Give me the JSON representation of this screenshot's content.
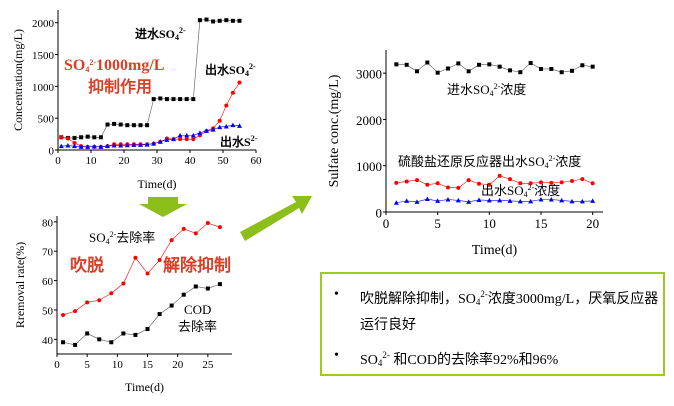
{
  "colors": {
    "arrow": "#8dbf1a",
    "box_border": "#9ccc1c",
    "annotation": "#d9402a",
    "series_black": "#000000",
    "series_red": "#ff0000",
    "series_blue": "#0000ff"
  },
  "chart_data": [
    {
      "type": "line",
      "xlabel": "Time(d)",
      "ylabel": "Concentration(mg/L)",
      "xlim": [
        0,
        60
      ],
      "ylim": [
        0,
        2200
      ],
      "xticks": [
        0,
        10,
        20,
        30,
        40,
        50,
        60
      ],
      "yticks": [
        0,
        500,
        1000,
        1500,
        2000
      ],
      "x": [
        1,
        3,
        5,
        7,
        9,
        11,
        13,
        15,
        17,
        19,
        21,
        23,
        25,
        27,
        29,
        31,
        33,
        35,
        37,
        39,
        41,
        43,
        45,
        47,
        49,
        51,
        53,
        55
      ],
      "series": [
        {
          "name": "进水SO4 2-",
          "color": "#000000",
          "marker": "square",
          "values": [
            200,
            190,
            190,
            200,
            210,
            200,
            200,
            400,
            410,
            400,
            390,
            390,
            390,
            390,
            800,
            810,
            800,
            800,
            800,
            800,
            800,
            2040,
            2050,
            2020,
            2030,
            2040,
            2030,
            2030
          ]
        },
        {
          "name": "出水SO4 2-",
          "color": "#ff0000",
          "marker": "circle",
          "values": [
            200,
            180,
            110,
            60,
            50,
            50,
            50,
            60,
            90,
            90,
            90,
            90,
            90,
            90,
            100,
            130,
            180,
            170,
            170,
            170,
            170,
            230,
            300,
            340,
            460,
            700,
            900,
            1060
          ]
        },
        {
          "name": "出水S2-",
          "color": "#0000ff",
          "marker": "triangle",
          "values": [
            60,
            70,
            60,
            50,
            50,
            55,
            50,
            60,
            70,
            70,
            75,
            80,
            80,
            85,
            100,
            130,
            160,
            170,
            230,
            230,
            230,
            270,
            300,
            320,
            360,
            370,
            390,
            380
          ]
        }
      ]
    },
    {
      "type": "line",
      "xlabel": "Time(d)",
      "ylabel": "Rremoval rate(%)",
      "xlim": [
        0,
        29
      ],
      "ylim": [
        35,
        82
      ],
      "xticks": [
        0,
        5,
        10,
        15,
        20,
        25
      ],
      "yticks": [
        40,
        50,
        60,
        70,
        80
      ],
      "x": [
        1,
        3,
        5,
        7,
        9,
        11,
        13,
        15,
        17,
        19,
        21,
        23,
        25,
        27
      ],
      "series": [
        {
          "name": "SO4 2-去除率",
          "color": "#ff0000",
          "marker": "circle",
          "values": [
            48.3,
            49.6,
            52.6,
            53.3,
            55.7,
            59,
            67.8,
            62.4,
            67,
            73.8,
            77.6,
            76.1,
            79.6,
            78.2
          ]
        },
        {
          "name": "COD去除率",
          "color": "#000000",
          "marker": "square",
          "values": [
            39,
            38.1,
            42,
            40,
            39,
            42,
            41.5,
            43.5,
            48.6,
            51.5,
            55.2,
            58,
            57.3,
            58.8
          ]
        }
      ]
    },
    {
      "type": "line",
      "xlabel": "Time(d)",
      "ylabel": "Sulfate conc.(mg/L)",
      "xlim": [
        0,
        21
      ],
      "ylim": [
        0,
        3500
      ],
      "xticks": [
        0,
        5,
        10,
        15,
        20
      ],
      "yticks": [
        0,
        1000,
        2000,
        3000
      ],
      "x": [
        1,
        2,
        3,
        4,
        5,
        6,
        7,
        8,
        9,
        10,
        11,
        12,
        13,
        14,
        15,
        16,
        17,
        18,
        19,
        20
      ],
      "series": [
        {
          "name": "进水SO4 2-浓度",
          "color": "#000000",
          "marker": "square",
          "values": [
            3190,
            3180,
            3040,
            3230,
            3010,
            3100,
            3210,
            3040,
            3180,
            3190,
            3140,
            3060,
            3020,
            3220,
            3090,
            3090,
            3020,
            3050,
            3170,
            3140
          ]
        },
        {
          "name": "硫酸盐还原反应器出水SO4 2-浓度",
          "color": "#ff0000",
          "marker": "circle",
          "values": [
            630,
            660,
            690,
            590,
            620,
            530,
            520,
            690,
            610,
            590,
            780,
            710,
            620,
            620,
            640,
            630,
            640,
            670,
            710,
            620
          ]
        },
        {
          "name": "出水SO4 2-浓度",
          "color": "#0000ff",
          "marker": "triangle",
          "values": [
            200,
            240,
            220,
            280,
            240,
            270,
            250,
            220,
            260,
            250,
            250,
            240,
            230,
            230,
            270,
            270,
            250,
            230,
            230,
            240
          ]
        }
      ]
    }
  ],
  "labels": {
    "c1_in": {
      "pre": "进水SO",
      "sub": "4",
      "sup": "2-",
      "post": ""
    },
    "c1_out": {
      "pre": "出水SO",
      "sub": "4",
      "sup": "2-",
      "post": ""
    },
    "c1_s": {
      "pre": "出水S",
      "sup": "2-"
    },
    "c1_note1": {
      "pre": "SO",
      "sub": "4",
      "sup": "2-",
      "post": "1000mg/L"
    },
    "c1_note2": "抑制作用",
    "c2_so4": {
      "pre": "SO",
      "sub": "4",
      "sup": "2-",
      "post": "去除率"
    },
    "c2_cod1": "COD",
    "c2_cod2": "去除率",
    "c2_note1": "吹脱",
    "c2_note2": "解除抑制",
    "c3_in": {
      "pre": "进水SO",
      "sub": "4",
      "sup": "2-",
      "post": "浓度"
    },
    "c3_red": {
      "pre": "硫酸盐还原反应器出水SO",
      "sub": "4",
      "sup": "2-",
      "post": "浓度"
    },
    "c3_blue": {
      "pre": "出水SO",
      "sub": "4",
      "sup": "2-",
      "post": "浓度"
    }
  },
  "summary": {
    "bullets": [
      {
        "pre": "吹脱解除抑制，SO",
        "sub": "4",
        "sup": "2-",
        "post": "浓度3000mg/L，厌氧反应器运行良好"
      },
      {
        "pre": "SO",
        "sub": "4",
        "sup": "2-",
        "post": " 和COD的去除率92%和96%"
      }
    ],
    "bullet_symbol": "•"
  }
}
